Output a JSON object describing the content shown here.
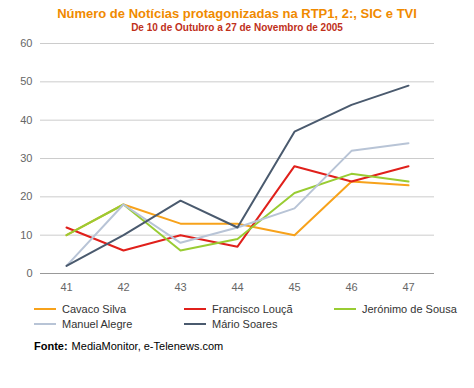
{
  "chart_data": {
    "type": "line",
    "title": "Número de Notícias protagonizadas na RTP1, 2:, SIC e TVI",
    "subtitle": "De 10 de Outubro a 27 de Novembro de 2005",
    "categories": [
      "41",
      "42",
      "43",
      "44",
      "45",
      "46",
      "47"
    ],
    "series": [
      {
        "name": "Cavaco Silva",
        "color": "#f7a21b",
        "values": [
          10,
          18,
          13,
          13,
          10,
          24,
          23
        ]
      },
      {
        "name": "Francisco Louçã",
        "color": "#e0201b",
        "values": [
          12,
          6,
          10,
          7,
          28,
          24,
          28
        ]
      },
      {
        "name": "Jerónimo de Sousa",
        "color": "#99cc33",
        "values": [
          10,
          18,
          6,
          9,
          21,
          26,
          24
        ]
      },
      {
        "name": "Manuel Alegre",
        "color": "#b8c4d6",
        "values": [
          2,
          18,
          8,
          12,
          17,
          32,
          34
        ]
      },
      {
        "name": "Mário Soares",
        "color": "#4a5a6e",
        "values": [
          2,
          10,
          19,
          12,
          37,
          44,
          49
        ]
      }
    ],
    "ylim": [
      0,
      60
    ],
    "yticks": [
      0,
      10,
      20,
      30,
      40,
      50,
      60
    ],
    "grid": true,
    "legend": "bottom",
    "source": [
      "Fonte:",
      "MediaMonitor, e-Telenews.com"
    ]
  }
}
